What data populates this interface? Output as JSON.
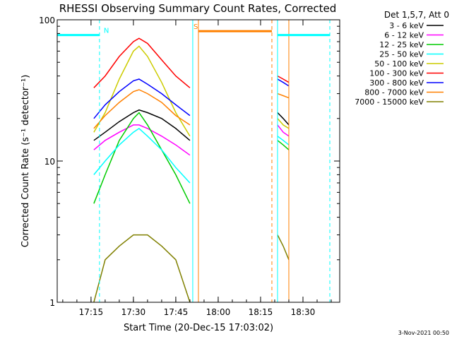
{
  "chart_data": {
    "type": "line",
    "title": "RHESSI Observing Summary Count Rates, Corrected",
    "xlabel": "Start Time (20-Dec-15 17:03:02)",
    "ylabel": "Corrected Count Rate (s⁻¹ detector⁻¹)",
    "x_scale": "time",
    "x_range": [
      "17:03:02",
      "18:43:00"
    ],
    "xticks": [
      "17:15",
      "17:30",
      "17:45",
      "18:00",
      "18:15",
      "18:30"
    ],
    "y_scale": "log",
    "ylim": [
      1,
      100
    ],
    "yticks": [
      "1",
      "10",
      "100"
    ],
    "legend_title": "Det 1,5,7, Att 0",
    "legend_position": "right",
    "footer": "3-Nov-2021 00:50",
    "series": [
      {
        "name": "3 - 6 keV",
        "color": "#000000",
        "x": [
          "17:16",
          "17:20",
          "17:25",
          "17:30",
          "17:32",
          "17:35",
          "17:40",
          "17:45",
          "17:50",
          "18:21",
          "18:23",
          "18:25"
        ],
        "values": [
          14,
          16,
          19,
          22,
          23,
          22,
          20,
          17,
          14,
          22,
          20,
          18
        ]
      },
      {
        "name": "6 - 12 keV",
        "color": "#ff00ff",
        "x": [
          "17:16",
          "17:20",
          "17:25",
          "17:30",
          "17:32",
          "17:35",
          "17:40",
          "17:45",
          "17:50",
          "18:21",
          "18:23",
          "18:25"
        ],
        "values": [
          12,
          14,
          16,
          18,
          18,
          17,
          15,
          13,
          11,
          18,
          16,
          15
        ]
      },
      {
        "name": "12 - 25 keV",
        "color": "#00cc00",
        "x": [
          "17:16",
          "17:20",
          "17:25",
          "17:30",
          "17:32",
          "17:35",
          "17:40",
          "17:45",
          "17:50",
          "18:21",
          "18:23",
          "18:25"
        ],
        "values": [
          5,
          8,
          14,
          20,
          22,
          18,
          12,
          8,
          5,
          14,
          13,
          12
        ]
      },
      {
        "name": "25 - 50 keV",
        "color": "#00ffff",
        "x": [
          "17:16",
          "17:20",
          "17:25",
          "17:30",
          "17:32",
          "17:35",
          "17:40",
          "17:45",
          "17:50",
          "18:21",
          "18:23",
          "18:25"
        ],
        "values": [
          8,
          10,
          13,
          16,
          17,
          15,
          12,
          9,
          7,
          15,
          14,
          13
        ]
      },
      {
        "name": "50 - 100 keV",
        "color": "#cccc00",
        "x": [
          "17:16",
          "17:20",
          "17:25",
          "17:30",
          "17:32",
          "17:35",
          "17:40",
          "17:45",
          "17:50",
          "18:21",
          "18:23",
          "18:25"
        ],
        "values": [
          16,
          22,
          38,
          60,
          65,
          55,
          36,
          22,
          15,
          20,
          18,
          17
        ]
      },
      {
        "name": "100 - 300 keV",
        "color": "#ff0000",
        "x": [
          "17:16",
          "17:20",
          "17:25",
          "17:30",
          "17:32",
          "17:35",
          "17:40",
          "17:45",
          "17:50",
          "18:21",
          "18:23",
          "18:25"
        ],
        "values": [
          33,
          40,
          55,
          70,
          74,
          68,
          52,
          40,
          33,
          40,
          38,
          36
        ]
      },
      {
        "name": "300 - 800 keV",
        "color": "#0000ff",
        "x": [
          "17:16",
          "17:20",
          "17:25",
          "17:30",
          "17:32",
          "17:35",
          "17:40",
          "17:45",
          "17:50",
          "18:21",
          "18:23",
          "18:25"
        ],
        "values": [
          20,
          25,
          31,
          37,
          38,
          35,
          30,
          25,
          21,
          38,
          36,
          34
        ]
      },
      {
        "name": "800 - 7000 keV",
        "color": "#ff8000",
        "x": [
          "17:16",
          "17:20",
          "17:25",
          "17:30",
          "17:32",
          "17:35",
          "17:40",
          "17:45",
          "17:50",
          "18:21",
          "18:23",
          "18:25"
        ],
        "values": [
          17,
          21,
          26,
          31,
          32,
          30,
          26,
          21,
          18,
          30,
          29,
          28
        ]
      },
      {
        "name": "7000 - 15000 keV",
        "color": "#808000",
        "x": [
          "17:16",
          "17:20",
          "17:25",
          "17:30",
          "17:32",
          "17:35",
          "17:40",
          "17:45",
          "17:50",
          "18:21",
          "18:23",
          "18:25"
        ],
        "values": [
          1,
          2,
          2.5,
          3,
          3,
          3,
          2.5,
          2,
          1,
          3,
          2.5,
          2
        ]
      }
    ],
    "annotations": [
      {
        "label": "N",
        "color": "#00ffff",
        "start": "17:03:02",
        "end": "17:18:00",
        "value": 78
      },
      {
        "label": "S",
        "color": "#ff8000",
        "start": "17:53:00",
        "end": "18:19:00",
        "value": 83
      },
      {
        "label": "",
        "color": "#00ffff",
        "start": "18:21:00",
        "end": "18:39:30",
        "value": 78
      }
    ],
    "vertical_lines": [
      {
        "time": "17:03:02",
        "color": "#00ffff",
        "style": "solid"
      },
      {
        "time": "17:18:00",
        "color": "#00ffff",
        "style": "dashed"
      },
      {
        "time": "17:51:00",
        "color": "#00ffff",
        "style": "solid"
      },
      {
        "time": "17:53:00",
        "color": "#ff8000",
        "style": "solid"
      },
      {
        "time": "18:19:00",
        "color": "#ff8000",
        "style": "dashed"
      },
      {
        "time": "18:21:00",
        "color": "#00ffff",
        "style": "solid"
      },
      {
        "time": "18:25:00",
        "color": "#ff8000",
        "style": "solid"
      },
      {
        "time": "18:39:30",
        "color": "#00ffff",
        "style": "dashed"
      }
    ]
  }
}
